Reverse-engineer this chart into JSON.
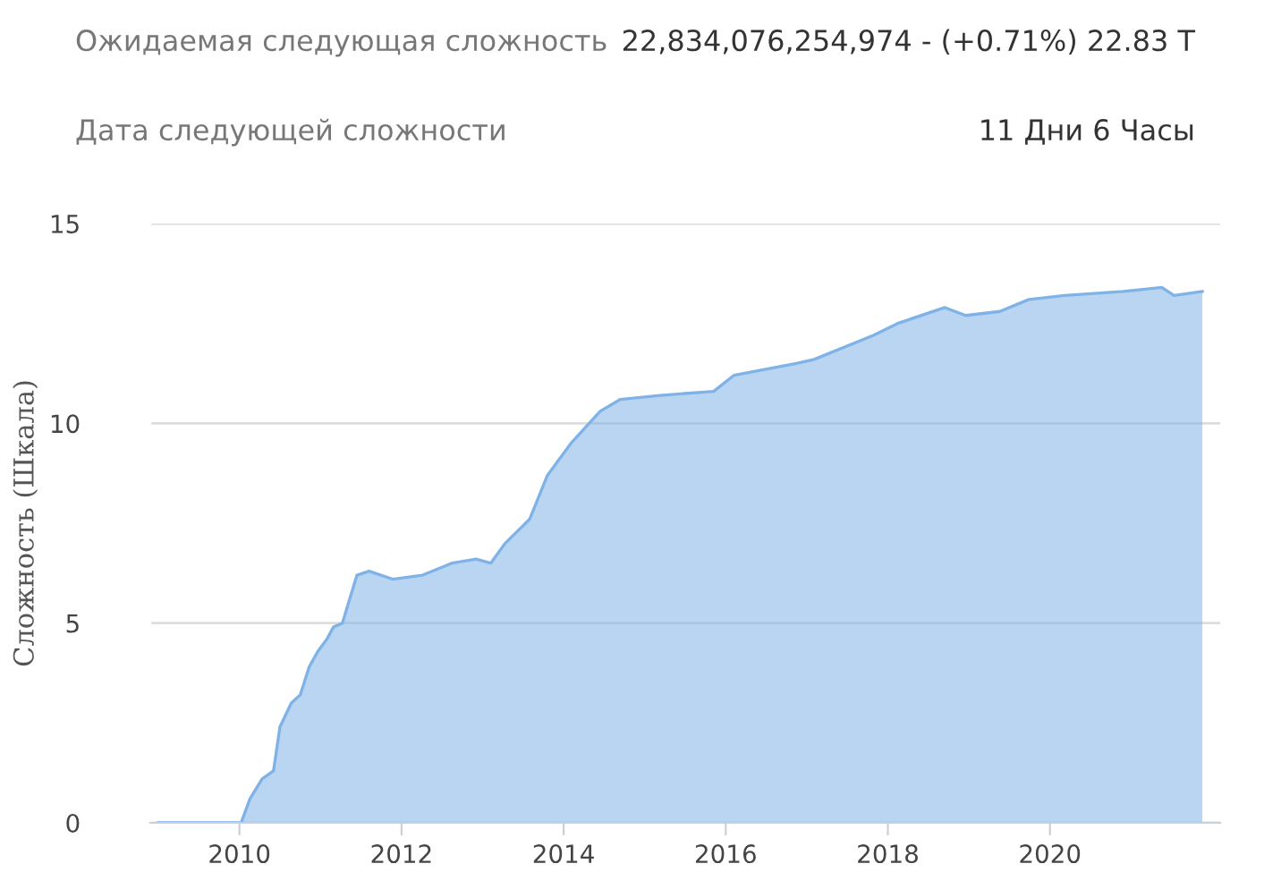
{
  "chart_data": {
    "type": "area",
    "ylabel": "Сложность (Шкала)",
    "annotations": [
      "Ожидаемая следующая сложность",
      "22,834,076,254,974 - (+0.71%) 22.83 T",
      "Дата следующей сложности",
      "11 Дни 6 Часы"
    ],
    "x": [
      2009.0,
      2010.02,
      2010.13,
      2010.28,
      2010.42,
      2010.5,
      2010.64,
      2010.75,
      2010.86,
      2010.97,
      2011.08,
      2011.16,
      2011.27,
      2011.45,
      2011.6,
      2011.89,
      2012.26,
      2012.62,
      2012.92,
      2013.1,
      2013.28,
      2013.58,
      2013.8,
      2014.09,
      2014.45,
      2014.7,
      2015.19,
      2015.85,
      2016.1,
      2016.87,
      2017.09,
      2017.82,
      2018.12,
      2018.7,
      2018.96,
      2019.38,
      2019.74,
      2020.18,
      2020.9,
      2021.38,
      2021.53,
      2021.88
    ],
    "series": [
      {
        "color": "#7fb3e8",
        "values": [
          0,
          0,
          0.6,
          1.1,
          1.3,
          2.4,
          3.0,
          3.2,
          3.9,
          4.3,
          4.6,
          4.9,
          5.0,
          6.2,
          6.3,
          6.1,
          6.2,
          6.5,
          6.6,
          6.5,
          7.0,
          7.6,
          8.7,
          9.5,
          10.3,
          10.6,
          10.7,
          10.8,
          11.2,
          11.5,
          11.6,
          12.2,
          12.5,
          12.9,
          12.7,
          12.8,
          13.1,
          13.2,
          13.3,
          13.4,
          13.2,
          13.3
        ]
      }
    ],
    "xlim": [
      2008.9,
      2022.1
    ],
    "xticks": [
      2010,
      2012,
      2014,
      2016,
      2018,
      2020
    ],
    "ylim": [
      0,
      15
    ],
    "yticks": [
      0,
      5,
      10,
      15
    ],
    "grid": "y"
  }
}
